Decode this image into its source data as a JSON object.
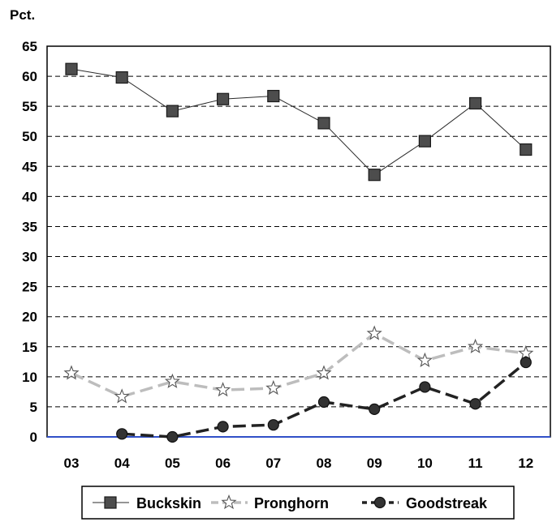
{
  "chart_data": {
    "type": "line",
    "unit_label": "Pct.",
    "categories": [
      "03",
      "04",
      "05",
      "06",
      "07",
      "08",
      "09",
      "10",
      "11",
      "12"
    ],
    "ylim": [
      0,
      65
    ],
    "yticks": [
      "0",
      "5",
      "10",
      "15",
      "20",
      "25",
      "30",
      "35",
      "40",
      "45",
      "50",
      "55",
      "60",
      "65"
    ],
    "grid": true,
    "legend_position": "bottom",
    "series": [
      {
        "name": "Buckskin",
        "marker": "square",
        "line": "solid",
        "color": "#2b2b2b",
        "marker_color": "#4d4d4d",
        "values": [
          61.2,
          59.8,
          54.2,
          56.2,
          56.7,
          52.2,
          43.6,
          49.2,
          55.5,
          47.8
        ]
      },
      {
        "name": "Pronghorn",
        "marker": "star",
        "line": "dashed",
        "color": "#bdbdbd",
        "marker_color": "#ffffff",
        "values": [
          10.6,
          6.7,
          9.2,
          7.8,
          8.1,
          10.6,
          17.2,
          12.7,
          15.0,
          13.9
        ]
      },
      {
        "name": "Goodstreak",
        "marker": "circle",
        "line": "dashed",
        "color": "#222222",
        "marker_color": "#333333",
        "values": [
          null,
          0.5,
          0.0,
          1.7,
          2.0,
          5.8,
          4.6,
          8.3,
          5.5,
          12.4
        ]
      }
    ]
  }
}
